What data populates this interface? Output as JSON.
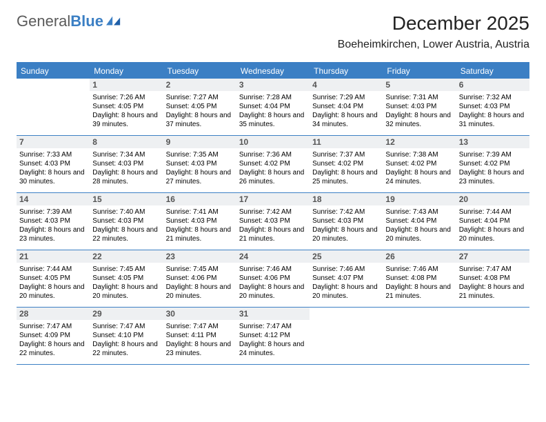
{
  "logo": {
    "word1": "General",
    "word2": "Blue"
  },
  "title": "December 2025",
  "location": "Boeheimkirchen, Lower Austria, Austria",
  "colors": {
    "brand_blue": "#3b7fc4",
    "daynum_bg": "#eef0f2",
    "daynum_color": "#555555",
    "text": "#000000",
    "logo_gray": "#5a5a5a"
  },
  "weekdays": [
    "Sunday",
    "Monday",
    "Tuesday",
    "Wednesday",
    "Thursday",
    "Friday",
    "Saturday"
  ],
  "weeks": [
    [
      null,
      {
        "n": "1",
        "sr": "7:26 AM",
        "ss": "4:05 PM",
        "dl": "8 hours and 39 minutes."
      },
      {
        "n": "2",
        "sr": "7:27 AM",
        "ss": "4:05 PM",
        "dl": "8 hours and 37 minutes."
      },
      {
        "n": "3",
        "sr": "7:28 AM",
        "ss": "4:04 PM",
        "dl": "8 hours and 35 minutes."
      },
      {
        "n": "4",
        "sr": "7:29 AM",
        "ss": "4:04 PM",
        "dl": "8 hours and 34 minutes."
      },
      {
        "n": "5",
        "sr": "7:31 AM",
        "ss": "4:03 PM",
        "dl": "8 hours and 32 minutes."
      },
      {
        "n": "6",
        "sr": "7:32 AM",
        "ss": "4:03 PM",
        "dl": "8 hours and 31 minutes."
      }
    ],
    [
      {
        "n": "7",
        "sr": "7:33 AM",
        "ss": "4:03 PM",
        "dl": "8 hours and 30 minutes."
      },
      {
        "n": "8",
        "sr": "7:34 AM",
        "ss": "4:03 PM",
        "dl": "8 hours and 28 minutes."
      },
      {
        "n": "9",
        "sr": "7:35 AM",
        "ss": "4:03 PM",
        "dl": "8 hours and 27 minutes."
      },
      {
        "n": "10",
        "sr": "7:36 AM",
        "ss": "4:02 PM",
        "dl": "8 hours and 26 minutes."
      },
      {
        "n": "11",
        "sr": "7:37 AM",
        "ss": "4:02 PM",
        "dl": "8 hours and 25 minutes."
      },
      {
        "n": "12",
        "sr": "7:38 AM",
        "ss": "4:02 PM",
        "dl": "8 hours and 24 minutes."
      },
      {
        "n": "13",
        "sr": "7:39 AM",
        "ss": "4:02 PM",
        "dl": "8 hours and 23 minutes."
      }
    ],
    [
      {
        "n": "14",
        "sr": "7:39 AM",
        "ss": "4:03 PM",
        "dl": "8 hours and 23 minutes."
      },
      {
        "n": "15",
        "sr": "7:40 AM",
        "ss": "4:03 PM",
        "dl": "8 hours and 22 minutes."
      },
      {
        "n": "16",
        "sr": "7:41 AM",
        "ss": "4:03 PM",
        "dl": "8 hours and 21 minutes."
      },
      {
        "n": "17",
        "sr": "7:42 AM",
        "ss": "4:03 PM",
        "dl": "8 hours and 21 minutes."
      },
      {
        "n": "18",
        "sr": "7:42 AM",
        "ss": "4:03 PM",
        "dl": "8 hours and 20 minutes."
      },
      {
        "n": "19",
        "sr": "7:43 AM",
        "ss": "4:04 PM",
        "dl": "8 hours and 20 minutes."
      },
      {
        "n": "20",
        "sr": "7:44 AM",
        "ss": "4:04 PM",
        "dl": "8 hours and 20 minutes."
      }
    ],
    [
      {
        "n": "21",
        "sr": "7:44 AM",
        "ss": "4:05 PM",
        "dl": "8 hours and 20 minutes."
      },
      {
        "n": "22",
        "sr": "7:45 AM",
        "ss": "4:05 PM",
        "dl": "8 hours and 20 minutes."
      },
      {
        "n": "23",
        "sr": "7:45 AM",
        "ss": "4:06 PM",
        "dl": "8 hours and 20 minutes."
      },
      {
        "n": "24",
        "sr": "7:46 AM",
        "ss": "4:06 PM",
        "dl": "8 hours and 20 minutes."
      },
      {
        "n": "25",
        "sr": "7:46 AM",
        "ss": "4:07 PM",
        "dl": "8 hours and 20 minutes."
      },
      {
        "n": "26",
        "sr": "7:46 AM",
        "ss": "4:08 PM",
        "dl": "8 hours and 21 minutes."
      },
      {
        "n": "27",
        "sr": "7:47 AM",
        "ss": "4:08 PM",
        "dl": "8 hours and 21 minutes."
      }
    ],
    [
      {
        "n": "28",
        "sr": "7:47 AM",
        "ss": "4:09 PM",
        "dl": "8 hours and 22 minutes."
      },
      {
        "n": "29",
        "sr": "7:47 AM",
        "ss": "4:10 PM",
        "dl": "8 hours and 22 minutes."
      },
      {
        "n": "30",
        "sr": "7:47 AM",
        "ss": "4:11 PM",
        "dl": "8 hours and 23 minutes."
      },
      {
        "n": "31",
        "sr": "7:47 AM",
        "ss": "4:12 PM",
        "dl": "8 hours and 24 minutes."
      },
      null,
      null,
      null
    ]
  ],
  "labels": {
    "sunrise": "Sunrise:",
    "sunset": "Sunset:",
    "daylight": "Daylight:"
  }
}
